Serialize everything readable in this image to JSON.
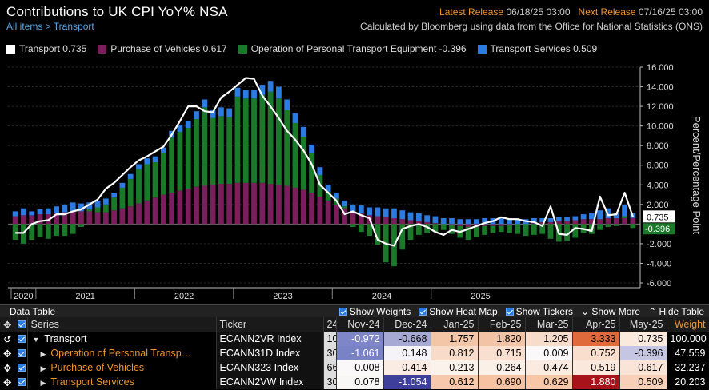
{
  "header": {
    "title": "Contributions to UK CPI YoY% NSA",
    "breadcrumb": "All items > Transport",
    "latest_release_label": "Latest Release",
    "latest_release_value": "06/18/25 03:00",
    "next_release_label": "Next Release",
    "next_release_value": "07/16/25 03:00",
    "source_note": "Calculated by Bloomberg using data from the Office for National Statistics (ONS)"
  },
  "legend": [
    {
      "label": "Transport 0.735",
      "color": "#ffffff"
    },
    {
      "label": "Purchase of Vehicles 0.617",
      "color": "#7a1f5c"
    },
    {
      "label": "Operation of Personal Transport Equipment -0.396",
      "color": "#1a7a2a"
    },
    {
      "label": "Transport Services 0.509",
      "color": "#2b7be0"
    }
  ],
  "chart_data": {
    "type": "bar",
    "stacked": true,
    "x_tick_labels": [
      "2020",
      "2021",
      "2022",
      "2023",
      "2024",
      "2025"
    ],
    "ylabel": "Percent/Percentage Point",
    "ylim": [
      -6,
      16
    ],
    "y_ticks": [
      "16.000",
      "14.000",
      "12.000",
      "10.000",
      "8.000",
      "6.000",
      "4.000",
      "2.000",
      "-2.000",
      "-4.000",
      "-6.000"
    ],
    "grid": true,
    "last_value_labels": [
      {
        "value": "0.735",
        "color": "#ffffff"
      },
      {
        "value": "-0.396",
        "color": "#1a7a2a"
      }
    ],
    "series": [
      {
        "name": "Purchase of Vehicles",
        "color": "#7a1f5c",
        "values": [
          0.8,
          0.9,
          0.9,
          1.0,
          1.0,
          1.1,
          1.2,
          1.3,
          1.3,
          1.3,
          1.2,
          1.2,
          1.4,
          1.6,
          1.8,
          2.1,
          2.4,
          2.7,
          3.0,
          3.2,
          3.4,
          3.6,
          3.8,
          3.9,
          4.0,
          4.1,
          4.1,
          4.2,
          4.2,
          4.2,
          4.2,
          4.1,
          4.0,
          3.9,
          3.7,
          3.5,
          3.2,
          2.8,
          2.4,
          2.0,
          1.6,
          1.3,
          1.1,
          0.9,
          0.8,
          0.7,
          0.6,
          0.5,
          0.4,
          0.3,
          0.2,
          0.1,
          0.0,
          -0.1,
          -0.2,
          -0.3,
          -0.3,
          -0.2,
          -0.2,
          -0.2,
          -0.1,
          0.0,
          0.0,
          0.1,
          0.2,
          0.2,
          0.3,
          0.3,
          0.4,
          0.5,
          0.5,
          0.5,
          0.6,
          0.6,
          0.6,
          0.62
        ]
      },
      {
        "name": "Operation of Personal Transport Equipment",
        "color": "#1a7a2a",
        "values": [
          -1.6,
          -2.0,
          -1.6,
          -1.3,
          -1.5,
          -1.2,
          -1.2,
          -1.0,
          -0.3,
          0.2,
          0.5,
          0.8,
          1.3,
          2.1,
          2.8,
          3.5,
          3.7,
          3.6,
          4.2,
          5.6,
          6.0,
          6.2,
          6.9,
          8.0,
          6.8,
          6.9,
          6.8,
          8.8,
          8.6,
          8.6,
          9.0,
          9.4,
          8.8,
          7.7,
          6.6,
          5.4,
          4.0,
          2.2,
          0.9,
          0.6,
          0.2,
          -0.3,
          -0.8,
          -1.2,
          -2.1,
          -3.9,
          -4.3,
          -2.6,
          -1.6,
          -1.1,
          -0.9,
          -0.8,
          -0.6,
          -0.9,
          -1.2,
          -1.3,
          -1.0,
          -0.9,
          -0.7,
          -0.6,
          -0.8,
          -1.0,
          -1.2,
          -1.1,
          -1.0,
          -1.5,
          -1.8,
          -1.7,
          -1.4,
          -0.9,
          -1.0,
          -0.6,
          -0.3,
          -0.2,
          0.2,
          -0.4
        ]
      },
      {
        "name": "Transport Services",
        "color": "#2b7be0",
        "values": [
          0.5,
          0.7,
          0.4,
          0.5,
          0.6,
          0.7,
          0.8,
          0.9,
          0.8,
          0.7,
          0.7,
          0.6,
          0.5,
          0.5,
          0.5,
          0.5,
          0.6,
          0.6,
          0.6,
          0.7,
          0.7,
          0.7,
          0.8,
          0.8,
          0.8,
          0.9,
          0.9,
          0.9,
          0.9,
          0.9,
          1.0,
          1.1,
          1.2,
          1.1,
          1.0,
          1.0,
          0.9,
          0.8,
          0.7,
          0.6,
          0.6,
          0.7,
          0.8,
          0.8,
          0.9,
          0.9,
          1.0,
          0.9,
          0.8,
          0.8,
          0.7,
          0.7,
          0.6,
          0.6,
          0.5,
          0.5,
          0.5,
          0.6,
          0.6,
          0.6,
          0.6,
          0.5,
          0.5,
          0.5,
          0.4,
          0.4,
          0.4,
          0.4,
          0.4,
          0.5,
          0.6,
          0.9,
          1.0,
          0.5,
          1.2,
          0.51
        ]
      },
      {
        "name": "Transport",
        "color": "#ffffff",
        "type": "line",
        "values": [
          -0.9,
          -0.9,
          0.0,
          0.3,
          0.4,
          1.0,
          1.0,
          1.3,
          1.5,
          2.0,
          2.5,
          3.6,
          4.2,
          5.0,
          5.8,
          6.5,
          6.9,
          7.4,
          7.9,
          9.1,
          10.5,
          12.0,
          12.0,
          11.5,
          11.4,
          12.9,
          13.5,
          14.2,
          14.9,
          14.8,
          13.1,
          12.0,
          10.8,
          9.5,
          8.6,
          7.5,
          6.1,
          4.0,
          3.2,
          2.4,
          1.0,
          1.3,
          0.9,
          0.6,
          -1.6,
          -2.0,
          -2.2,
          -0.5,
          -0.2,
          0.0,
          -0.3,
          -0.8,
          -1.1,
          -0.6,
          -0.8,
          -0.5,
          -0.2,
          0.1,
          0.3,
          0.7,
          0.5,
          0.5,
          0.3,
          0.2,
          -0.2,
          1.8,
          -1.0,
          -1.1,
          -0.4,
          -0.5,
          -0.7,
          2.8,
          0.9,
          1.0,
          3.2,
          0.735
        ]
      }
    ]
  },
  "data_table": {
    "title": "Data Table",
    "options": [
      "Show Weights",
      "Show Heat Map",
      "Show Tickers"
    ],
    "show_more": "Show More",
    "hide_table": "Hide Table",
    "columns": {
      "series": "Series",
      "ticker": "Ticker",
      "partial": "24",
      "weight": "Weight"
    },
    "months": [
      "Nov-24",
      "Dec-24",
      "Jan-25",
      "Feb-25",
      "Mar-25",
      "Apr-25",
      "May-25"
    ],
    "rows": [
      {
        "series": "Transport",
        "ticker": "ECANN2VR Index",
        "partial": "10",
        "values": [
          "-0.972",
          "-0.668",
          "1.757",
          "1.820",
          "1.205",
          "3.333",
          "0.735"
        ],
        "weight": "100.000",
        "heat": [
          "#7f86c8",
          "#a6a9d4",
          "#f3c6a8",
          "#f2c3a4",
          "#f8dccb",
          "#e06a3c",
          "#fbe9dd"
        ]
      },
      {
        "series": "Operation of Personal Transp…",
        "ticker": "ECANN31D Index",
        "partial": "30",
        "values": [
          "-1.061",
          "0.148",
          "0.812",
          "0.715",
          "0.009",
          "0.752",
          "-0.396"
        ],
        "weight": "47.559",
        "heat": [
          "#7a82c6",
          "#f5f3f8",
          "#f8dbc8",
          "#f9dfcf",
          "#faf8f8",
          "#f9decd",
          "#c5c7e2"
        ]
      },
      {
        "series": "Purchase of Vehicles",
        "ticker": "ECANN323 Index",
        "partial": "66",
        "values": [
          "0.008",
          "0.414",
          "0.213",
          "0.264",
          "0.474",
          "0.519",
          "0.617"
        ],
        "weight": "32.237",
        "heat": [
          "#faf8f8",
          "#fbece3",
          "#fbf2ec",
          "#fbf0e8",
          "#fbeae0",
          "#fbe8dd",
          "#fae4d7"
        ]
      },
      {
        "series": "Transport Services",
        "ticker": "ECANN2VW Index",
        "partial": "30",
        "values": [
          "0.078",
          "-1.054",
          "0.612",
          "0.690",
          "0.629",
          "1.880",
          "0.509"
        ],
        "weight": "20.203",
        "heat": [
          "#f9f6f6",
          "#3e3f9a",
          "#f7c8ab",
          "#f6c2a2",
          "#f7c7a8",
          "#a8121a",
          "#f8d0b7"
        ]
      }
    ]
  }
}
